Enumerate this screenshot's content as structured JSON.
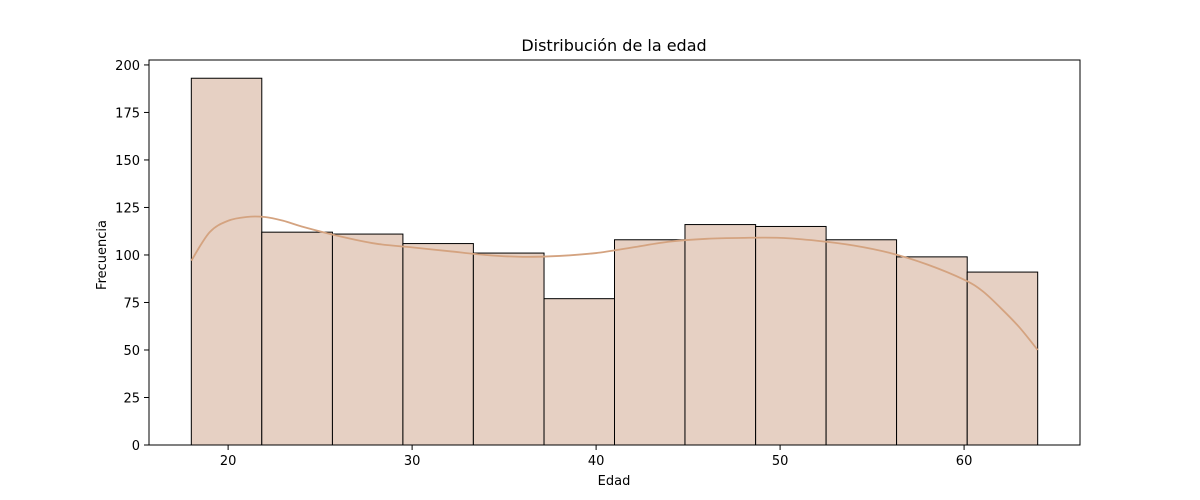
{
  "chart_data": {
    "type": "bar",
    "title": "Distribución de la edad",
    "xlabel": "Edad",
    "ylabel": "Frecuencia",
    "xlim": [
      15.7,
      66.3
    ],
    "ylim": [
      0,
      202.6
    ],
    "xticks": [
      20,
      30,
      40,
      50,
      60
    ],
    "yticks": [
      0,
      25,
      50,
      75,
      100,
      125,
      150,
      175,
      200
    ],
    "bins": [
      {
        "x0": 18.0,
        "x1": 21.83,
        "count": 193
      },
      {
        "x0": 21.83,
        "x1": 25.67,
        "count": 112
      },
      {
        "x0": 25.67,
        "x1": 29.5,
        "count": 111
      },
      {
        "x0": 29.5,
        "x1": 33.33,
        "count": 106
      },
      {
        "x0": 33.33,
        "x1": 37.17,
        "count": 101
      },
      {
        "x0": 37.17,
        "x1": 41.0,
        "count": 77
      },
      {
        "x0": 41.0,
        "x1": 44.83,
        "count": 108
      },
      {
        "x0": 44.83,
        "x1": 48.67,
        "count": 116
      },
      {
        "x0": 48.67,
        "x1": 52.5,
        "count": 115
      },
      {
        "x0": 52.5,
        "x1": 56.33,
        "count": 108
      },
      {
        "x0": 56.33,
        "x1": 60.17,
        "count": 99
      },
      {
        "x0": 60.17,
        "x1": 64.0,
        "count": 91
      }
    ],
    "kde": [
      [
        18,
        97
      ],
      [
        19,
        112
      ],
      [
        20,
        118
      ],
      [
        21,
        120
      ],
      [
        22,
        120
      ],
      [
        23,
        118
      ],
      [
        24,
        115
      ],
      [
        26,
        110
      ],
      [
        28,
        106
      ],
      [
        30,
        104
      ],
      [
        32,
        102
      ],
      [
        34,
        100
      ],
      [
        36,
        99
      ],
      [
        38,
        99.5
      ],
      [
        40,
        101
      ],
      [
        42,
        104
      ],
      [
        44,
        107
      ],
      [
        46,
        108.5
      ],
      [
        48,
        109
      ],
      [
        50,
        109
      ],
      [
        52,
        107.5
      ],
      [
        54,
        105
      ],
      [
        56,
        101
      ],
      [
        58,
        95
      ],
      [
        60,
        87
      ],
      [
        61,
        81
      ],
      [
        62,
        72
      ],
      [
        63,
        62
      ],
      [
        64,
        50
      ]
    ],
    "grid": false,
    "colors": {
      "bar_fill": "#e6d0c3",
      "bar_edge": "#000000",
      "kde_line": "#d4a380"
    }
  }
}
